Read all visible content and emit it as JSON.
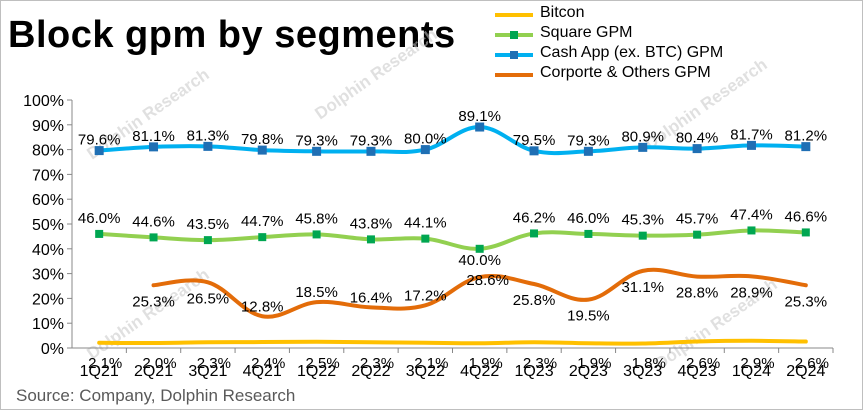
{
  "chart_data": {
    "type": "line",
    "title": "Block gpm by segments",
    "source": "Source: Company, Dolphin Research",
    "categories": [
      "1Q21",
      "2Q21",
      "3Q21",
      "4Q21",
      "1Q22",
      "2Q22",
      "3Q22",
      "4Q22",
      "1Q23",
      "2Q23",
      "3Q23",
      "4Q23",
      "1Q24",
      "2Q24"
    ],
    "ylim": [
      0,
      100
    ],
    "yticks": [
      "0%",
      "10%",
      "20%",
      "30%",
      "40%",
      "50%",
      "60%",
      "70%",
      "80%",
      "90%",
      "100%"
    ],
    "series": [
      {
        "name": "Bitcon",
        "color": "#ffc000",
        "values": [
          2.1,
          2.0,
          2.3,
          2.4,
          2.5,
          2.3,
          2.1,
          1.9,
          2.3,
          1.9,
          1.8,
          2.6,
          2.9,
          2.6
        ],
        "labels": [
          "2.1%",
          "2.0%",
          "2.3%",
          "2.4%",
          "2.5%",
          "2.3%",
          "2.1%",
          "1.9%",
          "2.3%",
          "1.9%",
          "1.8%",
          "2.6%",
          "2.9%",
          "2.6%"
        ]
      },
      {
        "name": "Square GPM",
        "color": "#92d050",
        "values": [
          46.0,
          44.6,
          43.5,
          44.7,
          45.8,
          43.8,
          44.1,
          40.0,
          46.2,
          46.0,
          45.3,
          45.7,
          47.4,
          46.6
        ],
        "labels": [
          "46.0%",
          "44.6%",
          "43.5%",
          "44.7%",
          "45.8%",
          "43.8%",
          "44.1%",
          "40.0%",
          "46.2%",
          "46.0%",
          "45.3%",
          "45.7%",
          "47.4%",
          "46.6%"
        ]
      },
      {
        "name": "Cash App (ex. BTC) GPM",
        "color": "#00b0f0",
        "values": [
          79.6,
          81.1,
          81.3,
          79.8,
          79.3,
          79.3,
          80.0,
          89.1,
          79.5,
          79.3,
          80.9,
          80.4,
          81.7,
          81.2
        ],
        "labels": [
          "79.6%",
          "81.1%",
          "81.3%",
          "79.8%",
          "79.3%",
          "79.3%",
          "80.0%",
          "89.1%",
          "79.5%",
          "79.3%",
          "80.9%",
          "80.4%",
          "81.7%",
          "81.2%"
        ]
      },
      {
        "name": "Corporte & Others GPM",
        "color": "#e36c09",
        "values": [
          null,
          25.3,
          26.5,
          12.8,
          18.5,
          16.4,
          17.2,
          28.6,
          25.8,
          19.5,
          31.1,
          28.8,
          28.9,
          25.3
        ],
        "labels": [
          null,
          "25.3%",
          "26.5%",
          "12.8%",
          "18.5%",
          "16.4%",
          "17.2%",
          "28.6%",
          "25.8%",
          "19.5%",
          "31.1%",
          "28.8%",
          "28.9%",
          "25.3%"
        ]
      }
    ]
  }
}
